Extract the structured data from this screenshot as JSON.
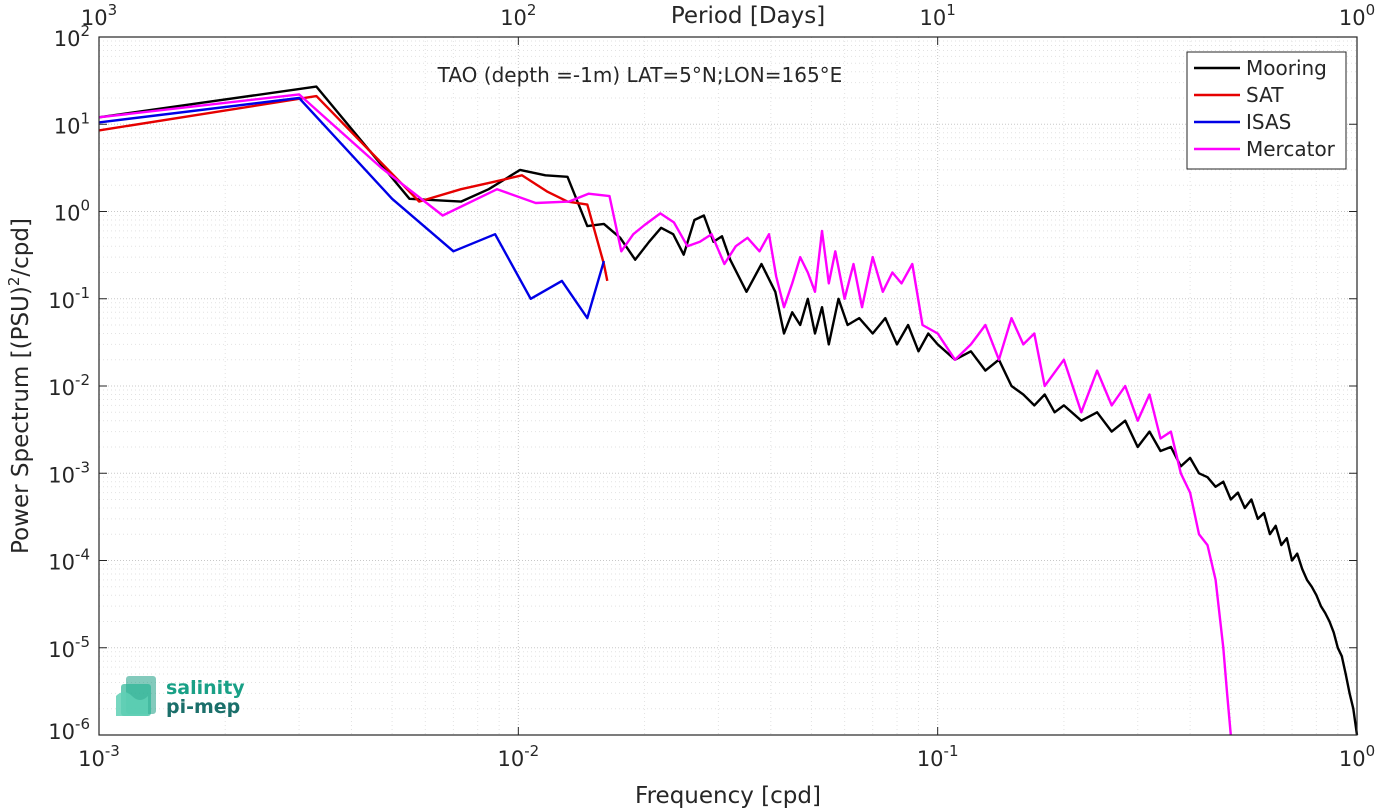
{
  "chart_data": {
    "type": "line",
    "xscale": "log",
    "yscale": "log",
    "xlim": [
      0.001,
      1
    ],
    "ylim": [
      1e-06,
      100
    ],
    "grid": true,
    "minor_grid": true,
    "xlabel": "Frequency [cpd]",
    "ylabel_main": "Power Spectrum [(PSU)",
    "ylabel_sup": "2",
    "ylabel_tail": "/cpd]",
    "top_axis_label": "Period [Days]",
    "annotation": "TAO (depth =-1m) LAT=5°N;LON=165°E",
    "legend_position": "top-right",
    "x_ticks": [
      {
        "value": 0.001,
        "base": "10",
        "exp": "-3"
      },
      {
        "value": 0.01,
        "base": "10",
        "exp": "-2"
      },
      {
        "value": 0.1,
        "base": "10",
        "exp": "-1"
      },
      {
        "value": 1,
        "base": "10",
        "exp": "0"
      }
    ],
    "top_ticks": [
      {
        "value": 0.001,
        "base": "10",
        "exp": "3"
      },
      {
        "value": 0.01,
        "base": "10",
        "exp": "2"
      },
      {
        "value": 0.1,
        "base": "10",
        "exp": "1"
      },
      {
        "value": 1,
        "base": "10",
        "exp": "0"
      }
    ],
    "y_ticks": [
      {
        "value": 100,
        "base": "10",
        "exp": "2"
      },
      {
        "value": 10,
        "base": "10",
        "exp": "1"
      },
      {
        "value": 1,
        "base": "10",
        "exp": "0"
      },
      {
        "value": 0.1,
        "base": "10",
        "exp": "-1"
      },
      {
        "value": 0.01,
        "base": "10",
        "exp": "-2"
      },
      {
        "value": 0.001,
        "base": "10",
        "exp": "-3"
      },
      {
        "value": 0.0001,
        "base": "10",
        "exp": "-4"
      },
      {
        "value": 1e-05,
        "base": "10",
        "exp": "-5"
      },
      {
        "value": 1e-06,
        "base": "10",
        "exp": "-6"
      }
    ],
    "series": [
      {
        "name": "Mooring",
        "color": "#000000",
        "x": [
          0.001,
          0.0033,
          0.0055,
          0.0073,
          0.0085,
          0.0101,
          0.0116,
          0.0131,
          0.0146,
          0.016,
          0.0175,
          0.019,
          0.0205,
          0.0219,
          0.0234,
          0.0248,
          0.0263,
          0.0277,
          0.0292,
          0.0306,
          0.032,
          0.035,
          0.038,
          0.041,
          0.043,
          0.045,
          0.047,
          0.049,
          0.051,
          0.053,
          0.055,
          0.058,
          0.061,
          0.065,
          0.07,
          0.075,
          0.08,
          0.085,
          0.09,
          0.095,
          0.1,
          0.11,
          0.12,
          0.13,
          0.14,
          0.15,
          0.16,
          0.17,
          0.18,
          0.19,
          0.2,
          0.22,
          0.24,
          0.26,
          0.28,
          0.3,
          0.32,
          0.34,
          0.36,
          0.38,
          0.4,
          0.42,
          0.44,
          0.46,
          0.48,
          0.5,
          0.52,
          0.54,
          0.56,
          0.58,
          0.6,
          0.62,
          0.64,
          0.66,
          0.68,
          0.7,
          0.72,
          0.74,
          0.76,
          0.78,
          0.8,
          0.82,
          0.84,
          0.86,
          0.88,
          0.9,
          0.92,
          0.94,
          0.96,
          0.98,
          1.0
        ],
        "y": [
          12,
          27,
          1.4,
          1.3,
          1.8,
          3.0,
          2.6,
          2.5,
          0.68,
          0.72,
          0.5,
          0.28,
          0.45,
          0.65,
          0.55,
          0.32,
          0.8,
          0.9,
          0.45,
          0.52,
          0.28,
          0.12,
          0.25,
          0.12,
          0.04,
          0.07,
          0.05,
          0.1,
          0.04,
          0.08,
          0.03,
          0.1,
          0.05,
          0.06,
          0.04,
          0.06,
          0.03,
          0.05,
          0.025,
          0.04,
          0.03,
          0.02,
          0.025,
          0.015,
          0.02,
          0.01,
          0.008,
          0.006,
          0.008,
          0.005,
          0.006,
          0.004,
          0.005,
          0.003,
          0.004,
          0.002,
          0.003,
          0.0018,
          0.002,
          0.0012,
          0.0015,
          0.001,
          0.0009,
          0.0007,
          0.0008,
          0.0005,
          0.0006,
          0.0004,
          0.0005,
          0.0003,
          0.00035,
          0.0002,
          0.00025,
          0.00015,
          0.00018,
          0.0001,
          0.00012,
          8e-05,
          6e-05,
          5e-05,
          4e-05,
          3e-05,
          2.5e-05,
          2e-05,
          1.5e-05,
          1e-05,
          8e-06,
          5e-06,
          3e-06,
          2e-06,
          1e-06
        ]
      },
      {
        "name": "SAT",
        "color": "#e60000",
        "x": [
          0.001,
          0.0033,
          0.0058,
          0.0073,
          0.0088,
          0.0102,
          0.0117,
          0.0131,
          0.0146,
          0.016,
          0.0163
        ],
        "y": [
          8.5,
          21,
          1.3,
          1.8,
          2.2,
          2.6,
          1.7,
          1.3,
          1.2,
          0.25,
          0.16
        ]
      },
      {
        "name": "ISAS",
        "color": "#0000e6",
        "x": [
          0.001,
          0.003,
          0.005,
          0.007,
          0.0088,
          0.0107,
          0.0127,
          0.0146,
          0.016
        ],
        "y": [
          10.5,
          20,
          1.4,
          0.35,
          0.55,
          0.1,
          0.16,
          0.06,
          0.27
        ]
      },
      {
        "name": "Mercator",
        "color": "#ff00ff",
        "x": [
          0.001,
          0.003,
          0.0047,
          0.0066,
          0.0089,
          0.011,
          0.0132,
          0.0147,
          0.0165,
          0.0176,
          0.0188,
          0.02,
          0.0218,
          0.0235,
          0.0253,
          0.0271,
          0.0289,
          0.031,
          0.033,
          0.0352,
          0.0376,
          0.0396,
          0.0412,
          0.043,
          0.045,
          0.047,
          0.049,
          0.051,
          0.053,
          0.055,
          0.057,
          0.06,
          0.063,
          0.066,
          0.07,
          0.074,
          0.078,
          0.082,
          0.087,
          0.092,
          0.1,
          0.11,
          0.12,
          0.13,
          0.14,
          0.15,
          0.16,
          0.17,
          0.18,
          0.2,
          0.22,
          0.24,
          0.26,
          0.28,
          0.3,
          0.32,
          0.34,
          0.36,
          0.38,
          0.4,
          0.42,
          0.44,
          0.46,
          0.48,
          0.49,
          0.5
        ],
        "y": [
          12,
          22,
          3.2,
          0.9,
          1.8,
          1.25,
          1.3,
          1.6,
          1.5,
          0.35,
          0.55,
          0.7,
          0.95,
          0.75,
          0.4,
          0.45,
          0.55,
          0.25,
          0.4,
          0.5,
          0.35,
          0.55,
          0.18,
          0.08,
          0.15,
          0.3,
          0.2,
          0.12,
          0.6,
          0.15,
          0.35,
          0.1,
          0.25,
          0.08,
          0.3,
          0.12,
          0.2,
          0.15,
          0.25,
          0.05,
          0.04,
          0.02,
          0.03,
          0.05,
          0.02,
          0.06,
          0.03,
          0.04,
          0.01,
          0.02,
          0.005,
          0.015,
          0.006,
          0.01,
          0.004,
          0.008,
          0.0025,
          0.003,
          0.001,
          0.0006,
          0.0002,
          0.00015,
          6e-05,
          1e-05,
          3e-06,
          1e-06
        ]
      }
    ]
  },
  "logo": {
    "line1": "salinity",
    "line2": "pi-mep"
  }
}
